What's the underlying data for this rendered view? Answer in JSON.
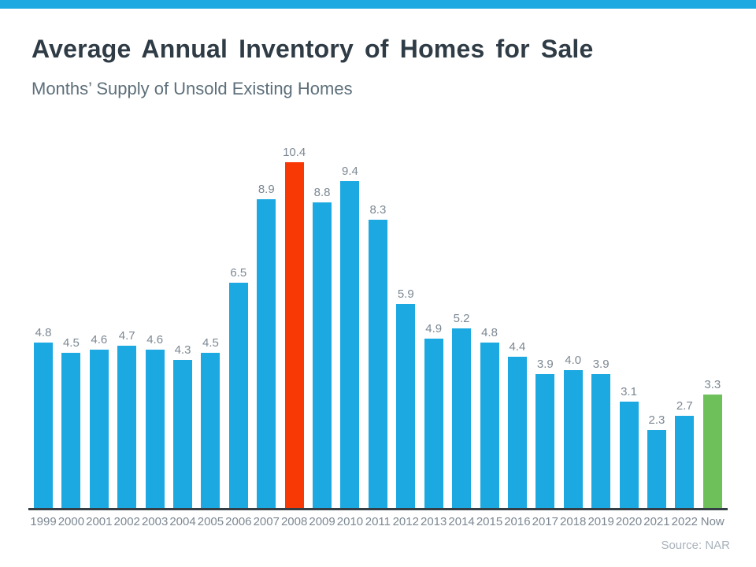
{
  "header": {
    "title": "Average Annual Inventory of Homes for Sale",
    "subtitle": "Months’ Supply of Unsold Existing Homes"
  },
  "chart_data": {
    "type": "bar",
    "title": "Average Annual Inventory of Homes for Sale",
    "subtitle": "Months’ Supply of Unsold Existing Homes",
    "categories": [
      "1999",
      "2000",
      "2001",
      "2002",
      "2003",
      "2004",
      "2005",
      "2006",
      "2007",
      "2008",
      "2009",
      "2010",
      "2011",
      "2012",
      "2013",
      "2014",
      "2015",
      "2016",
      "2017",
      "2018",
      "2019",
      "2020",
      "2021",
      "2022",
      "Now"
    ],
    "values": [
      4.8,
      4.5,
      4.6,
      4.7,
      4.6,
      4.3,
      4.5,
      6.5,
      8.9,
      10.4,
      8.8,
      9.4,
      8.3,
      5.9,
      4.9,
      5.2,
      4.8,
      4.4,
      3.9,
      4.0,
      3.9,
      3.1,
      2.3,
      2.7,
      3.3
    ],
    "value_labels": [
      "4.8",
      "4.5",
      "4.6",
      "4.7",
      "4.6",
      "4.3",
      "4.5",
      "6.5",
      "8.9",
      "10.4",
      "8.8",
      "9.4",
      "8.3",
      "5.9",
      "4.9",
      "5.2",
      "4.8",
      "4.4",
      "3.9",
      "4.0",
      "3.9",
      "3.1",
      "2.3",
      "2.7",
      "3.3"
    ],
    "bar_colors": [
      "blue",
      "blue",
      "blue",
      "blue",
      "blue",
      "blue",
      "blue",
      "blue",
      "blue",
      "red",
      "blue",
      "blue",
      "blue",
      "blue",
      "blue",
      "blue",
      "blue",
      "blue",
      "blue",
      "blue",
      "blue",
      "blue",
      "blue",
      "blue",
      "green"
    ],
    "palette": {
      "blue": "#1CA9E2",
      "red": "#F93905",
      "green": "#6EC05A"
    },
    "ylim": [
      0,
      10.4
    ],
    "grid": false,
    "data_labels": true,
    "legend": "none",
    "xlabel": "",
    "ylabel": ""
  },
  "footer": {
    "source": "Source: NAR"
  },
  "colors": {
    "accent_bar": "#1CA9E2",
    "title": "#2F3C46",
    "subtitle": "#5D6F7A",
    "labels": "#7C8893",
    "axis": "#343E44",
    "source": "#A9B2BC"
  }
}
